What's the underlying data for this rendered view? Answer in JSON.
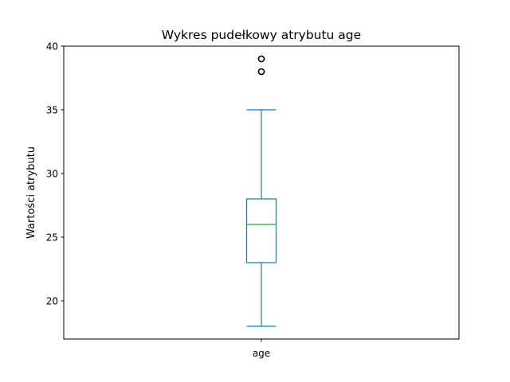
{
  "chart_data": {
    "type": "box",
    "title": "Wykres pudełkowy atrybutu age",
    "xlabel": "",
    "ylabel": "Wartości atrybutu",
    "categories": [
      "age"
    ],
    "ylim": [
      17,
      40
    ],
    "yticks": [
      20,
      25,
      30,
      35,
      40
    ],
    "grid": false,
    "series": [
      {
        "whisker_low": 18,
        "q1": 23,
        "median": 26,
        "q3": 28,
        "whisker_high": 35,
        "outliers": [
          38,
          38,
          39,
          39
        ]
      }
    ],
    "colors": {
      "box": "#1f77b4",
      "median": "#2ca02c",
      "outlier": "#000000",
      "axes": "#000000"
    }
  }
}
